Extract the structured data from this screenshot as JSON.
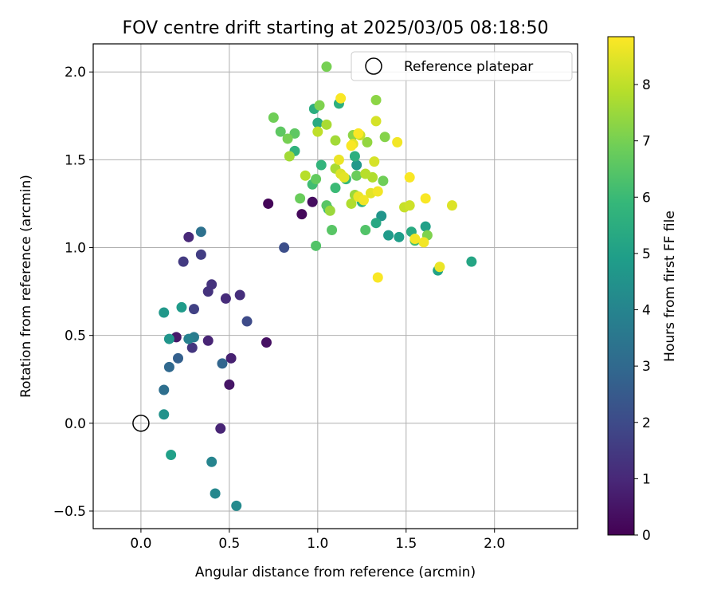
{
  "chart_data": {
    "type": "scatter",
    "title": "FOV centre drift starting at 2025/03/05 08:18:50",
    "xlabel": "Angular distance from reference (arcmin)",
    "ylabel": "Rotation from reference (arcmin)",
    "xlim": [
      -0.27,
      2.47
    ],
    "ylim": [
      -0.6,
      2.16
    ],
    "x_ticks": [
      0.0,
      0.5,
      1.0,
      1.5,
      2.0
    ],
    "x_tick_labels": [
      "0.0",
      "0.5",
      "1.0",
      "1.5",
      "2.0"
    ],
    "y_ticks": [
      -0.5,
      0.0,
      0.5,
      1.0,
      1.5,
      2.0
    ],
    "y_tick_labels": [
      "−0.5",
      "0.0",
      "0.5",
      "1.0",
      "1.5",
      "2.0"
    ],
    "grid": true,
    "legend": {
      "position": "top-right",
      "label": "Reference platepar"
    },
    "reference_point": {
      "x": 0.0,
      "y": 0.0
    },
    "colorbar": {
      "label": "Hours from first FF file",
      "colormap": "viridis",
      "min": 0,
      "max": 8.85,
      "ticks": [
        0,
        1,
        2,
        3,
        4,
        5,
        6,
        7,
        8
      ],
      "tick_labels": [
        "0",
        "1",
        "2",
        "3",
        "4",
        "5",
        "6",
        "7",
        "8"
      ]
    },
    "points": [
      {
        "x": 0.72,
        "y": 1.25,
        "c": 0.1
      },
      {
        "x": 0.91,
        "y": 1.19,
        "c": 0.2
      },
      {
        "x": 0.97,
        "y": 1.26,
        "c": 0.3
      },
      {
        "x": 0.71,
        "y": 0.46,
        "c": 0.4
      },
      {
        "x": 0.5,
        "y": 0.22,
        "c": 0.5
      },
      {
        "x": 0.2,
        "y": 0.49,
        "c": 0.6
      },
      {
        "x": 0.51,
        "y": 0.37,
        "c": 0.8
      },
      {
        "x": 0.45,
        "y": -0.03,
        "c": 0.9
      },
      {
        "x": 0.38,
        "y": 0.47,
        "c": 0.9
      },
      {
        "x": 0.27,
        "y": 1.06,
        "c": 1.0
      },
      {
        "x": 0.48,
        "y": 0.71,
        "c": 1.1
      },
      {
        "x": 0.56,
        "y": 0.73,
        "c": 1.2
      },
      {
        "x": 0.4,
        "y": 0.79,
        "c": 1.3
      },
      {
        "x": 0.38,
        "y": 0.75,
        "c": 1.3
      },
      {
        "x": 0.29,
        "y": 0.43,
        "c": 1.4
      },
      {
        "x": 0.24,
        "y": 0.92,
        "c": 1.5
      },
      {
        "x": 0.34,
        "y": 0.96,
        "c": 1.6
      },
      {
        "x": 0.3,
        "y": 0.65,
        "c": 1.7
      },
      {
        "x": 0.6,
        "y": 0.58,
        "c": 2.0
      },
      {
        "x": 0.81,
        "y": 1.0,
        "c": 2.1
      },
      {
        "x": 0.21,
        "y": 0.37,
        "c": 2.7
      },
      {
        "x": 0.46,
        "y": 0.34,
        "c": 2.9
      },
      {
        "x": 0.16,
        "y": 0.32,
        "c": 3.0
      },
      {
        "x": 0.13,
        "y": 0.19,
        "c": 3.2
      },
      {
        "x": 0.34,
        "y": 1.09,
        "c": 3.3
      },
      {
        "x": 0.3,
        "y": 0.49,
        "c": 3.7
      },
      {
        "x": 0.27,
        "y": 0.48,
        "c": 3.9
      },
      {
        "x": 0.4,
        "y": -0.22,
        "c": 4.0
      },
      {
        "x": 0.42,
        "y": -0.4,
        "c": 4.1
      },
      {
        "x": 0.54,
        "y": -0.47,
        "c": 4.2
      },
      {
        "x": 0.13,
        "y": 0.05,
        "c": 4.5
      },
      {
        "x": 0.16,
        "y": 0.48,
        "c": 4.6
      },
      {
        "x": 0.13,
        "y": 0.63,
        "c": 4.7
      },
      {
        "x": 0.23,
        "y": 0.66,
        "c": 4.8
      },
      {
        "x": 0.17,
        "y": -0.18,
        "c": 5.0
      },
      {
        "x": 1.36,
        "y": 1.18,
        "c": 4.6
      },
      {
        "x": 1.22,
        "y": 1.47,
        "c": 4.7
      },
      {
        "x": 1.4,
        "y": 1.07,
        "c": 4.8
      },
      {
        "x": 1.46,
        "y": 1.06,
        "c": 4.9
      },
      {
        "x": 1.61,
        "y": 1.12,
        "c": 5.0
      },
      {
        "x": 1.68,
        "y": 0.87,
        "c": 5.1
      },
      {
        "x": 1.87,
        "y": 0.92,
        "c": 5.2
      },
      {
        "x": 1.33,
        "y": 1.14,
        "c": 5.3
      },
      {
        "x": 1.53,
        "y": 1.09,
        "c": 5.4
      },
      {
        "x": 1.0,
        "y": 1.71,
        "c": 5.4
      },
      {
        "x": 0.98,
        "y": 1.79,
        "c": 5.5
      },
      {
        "x": 1.12,
        "y": 1.82,
        "c": 5.6
      },
      {
        "x": 1.21,
        "y": 1.52,
        "c": 5.6
      },
      {
        "x": 0.87,
        "y": 1.55,
        "c": 5.7
      },
      {
        "x": 1.25,
        "y": 1.26,
        "c": 5.7
      },
      {
        "x": 1.02,
        "y": 1.47,
        "c": 5.8
      },
      {
        "x": 1.16,
        "y": 1.39,
        "c": 5.9
      },
      {
        "x": 1.06,
        "y": 1.22,
        "c": 5.9
      },
      {
        "x": 1.1,
        "y": 1.34,
        "c": 6.0
      },
      {
        "x": 0.97,
        "y": 1.36,
        "c": 6.1
      },
      {
        "x": 1.55,
        "y": 1.04,
        "c": 6.2
      },
      {
        "x": 0.99,
        "y": 1.01,
        "c": 6.4
      },
      {
        "x": 1.27,
        "y": 1.1,
        "c": 6.4
      },
      {
        "x": 1.05,
        "y": 1.24,
        "c": 6.5
      },
      {
        "x": 1.08,
        "y": 1.1,
        "c": 6.5
      },
      {
        "x": 0.79,
        "y": 1.66,
        "c": 6.6
      },
      {
        "x": 0.87,
        "y": 1.65,
        "c": 6.6
      },
      {
        "x": 0.99,
        "y": 1.39,
        "c": 6.7
      },
      {
        "x": 0.9,
        "y": 1.28,
        "c": 6.8
      },
      {
        "x": 1.22,
        "y": 1.41,
        "c": 6.8
      },
      {
        "x": 1.37,
        "y": 1.38,
        "c": 6.9
      },
      {
        "x": 0.75,
        "y": 1.74,
        "c": 6.9
      },
      {
        "x": 1.05,
        "y": 2.03,
        "c": 7.0
      },
      {
        "x": 0.83,
        "y": 1.62,
        "c": 7.0
      },
      {
        "x": 1.01,
        "y": 1.81,
        "c": 7.1
      },
      {
        "x": 1.62,
        "y": 1.07,
        "c": 7.1
      },
      {
        "x": 1.38,
        "y": 1.63,
        "c": 7.2
      },
      {
        "x": 1.33,
        "y": 1.84,
        "c": 7.3
      },
      {
        "x": 1.2,
        "y": 1.64,
        "c": 7.3
      },
      {
        "x": 1.28,
        "y": 1.6,
        "c": 7.4
      },
      {
        "x": 1.21,
        "y": 1.3,
        "c": 7.5
      },
      {
        "x": 1.07,
        "y": 1.21,
        "c": 7.5
      },
      {
        "x": 1.1,
        "y": 1.61,
        "c": 7.6
      },
      {
        "x": 0.84,
        "y": 1.52,
        "c": 7.6
      },
      {
        "x": 1.05,
        "y": 1.7,
        "c": 7.7
      },
      {
        "x": 1.1,
        "y": 1.45,
        "c": 7.7
      },
      {
        "x": 1.19,
        "y": 1.25,
        "c": 7.8
      },
      {
        "x": 1.31,
        "y": 1.4,
        "c": 7.8
      },
      {
        "x": 1.27,
        "y": 1.42,
        "c": 7.9
      },
      {
        "x": 0.93,
        "y": 1.41,
        "c": 7.9
      },
      {
        "x": 1.0,
        "y": 1.66,
        "c": 8.0
      },
      {
        "x": 1.24,
        "y": 1.64,
        "c": 8.1
      },
      {
        "x": 1.49,
        "y": 1.23,
        "c": 8.1
      },
      {
        "x": 1.52,
        "y": 1.24,
        "c": 8.2
      },
      {
        "x": 1.33,
        "y": 1.72,
        "c": 8.3
      },
      {
        "x": 1.32,
        "y": 1.49,
        "c": 8.3
      },
      {
        "x": 1.13,
        "y": 1.42,
        "c": 8.4
      },
      {
        "x": 1.76,
        "y": 1.24,
        "c": 8.4
      },
      {
        "x": 1.2,
        "y": 1.59,
        "c": 8.5
      },
      {
        "x": 1.3,
        "y": 1.31,
        "c": 8.5
      },
      {
        "x": 1.15,
        "y": 1.4,
        "c": 8.5
      },
      {
        "x": 1.23,
        "y": 1.29,
        "c": 8.6
      },
      {
        "x": 1.69,
        "y": 0.89,
        "c": 8.6
      },
      {
        "x": 1.12,
        "y": 1.5,
        "c": 8.6
      },
      {
        "x": 1.34,
        "y": 1.32,
        "c": 8.7
      },
      {
        "x": 1.26,
        "y": 1.27,
        "c": 8.7
      },
      {
        "x": 1.45,
        "y": 1.6,
        "c": 8.7
      },
      {
        "x": 1.55,
        "y": 1.05,
        "c": 8.7
      },
      {
        "x": 1.6,
        "y": 1.03,
        "c": 8.7
      },
      {
        "x": 1.34,
        "y": 0.83,
        "c": 8.8
      },
      {
        "x": 1.52,
        "y": 1.4,
        "c": 8.8
      },
      {
        "x": 1.61,
        "y": 1.28,
        "c": 8.8
      },
      {
        "x": 1.23,
        "y": 1.65,
        "c": 8.8
      },
      {
        "x": 1.19,
        "y": 1.58,
        "c": 8.8
      },
      {
        "x": 1.13,
        "y": 1.85,
        "c": 8.8
      }
    ]
  }
}
